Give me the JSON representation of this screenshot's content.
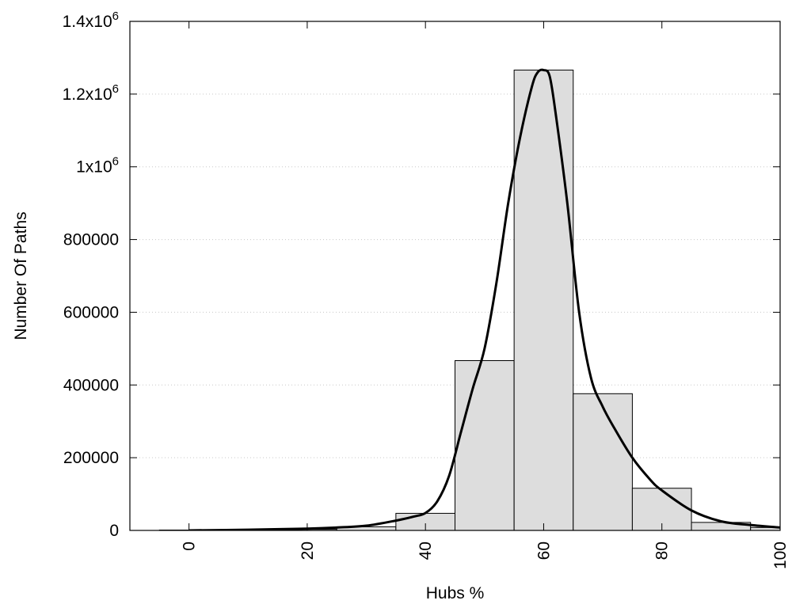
{
  "chart_data": {
    "type": "bar",
    "title": "",
    "xlabel": "Hubs %",
    "ylabel": "Number Of Paths",
    "xlim": [
      -10,
      100
    ],
    "ylim": [
      0,
      1400000
    ],
    "grid": "horizontal-dotted",
    "legend": "none",
    "x_ticks": [
      {
        "value": 0,
        "label": "0"
      },
      {
        "value": 20,
        "label": "20"
      },
      {
        "value": 40,
        "label": "40"
      },
      {
        "value": 60,
        "label": "60"
      },
      {
        "value": 80,
        "label": "80"
      },
      {
        "value": 100,
        "label": "100"
      }
    ],
    "y_ticks": [
      {
        "value": 0,
        "base": "0",
        "exp": ""
      },
      {
        "value": 200000,
        "base": "200000",
        "exp": ""
      },
      {
        "value": 400000,
        "base": "400000",
        "exp": ""
      },
      {
        "value": 600000,
        "base": "600000",
        "exp": ""
      },
      {
        "value": 800000,
        "base": "800000",
        "exp": ""
      },
      {
        "value": 1000000,
        "base": "1x10",
        "exp": "6"
      },
      {
        "value": 1200000,
        "base": "1.2x10",
        "exp": "6"
      },
      {
        "value": 1400000,
        "base": "1.4x10",
        "exp": "6"
      }
    ],
    "bar_width": 10,
    "bars": [
      {
        "x": 0,
        "value": 1000
      },
      {
        "x": 10,
        "value": 1500
      },
      {
        "x": 20,
        "value": 3000
      },
      {
        "x": 30,
        "value": 10000
      },
      {
        "x": 40,
        "value": 47000
      },
      {
        "x": 50,
        "value": 467000
      },
      {
        "x": 60,
        "value": 1266000
      },
      {
        "x": 70,
        "value": 376000
      },
      {
        "x": 80,
        "value": 116000
      },
      {
        "x": 90,
        "value": 22000
      },
      {
        "x": 100,
        "value": 8000
      }
    ],
    "curve": {
      "x": [
        0,
        10,
        20,
        25,
        30,
        35,
        38,
        40,
        42,
        44,
        46,
        48,
        50,
        52,
        54,
        56,
        58,
        59,
        60,
        61,
        62,
        64,
        66,
        68,
        70,
        72,
        75,
        78,
        80,
        85,
        90,
        95,
        100
      ],
      "y": [
        0,
        2000,
        5000,
        8000,
        13000,
        27000,
        38000,
        48000,
        80000,
        150000,
        270000,
        390000,
        500000,
        680000,
        900000,
        1080000,
        1220000,
        1260000,
        1266000,
        1250000,
        1150000,
        900000,
        600000,
        420000,
        340000,
        280000,
        200000,
        140000,
        110000,
        55000,
        25000,
        15000,
        8000
      ]
    },
    "colors": {
      "bar_fill": "#dddddd",
      "bar_stroke": "#000000",
      "curve": "#000000",
      "grid": "#c8c8c8"
    }
  }
}
